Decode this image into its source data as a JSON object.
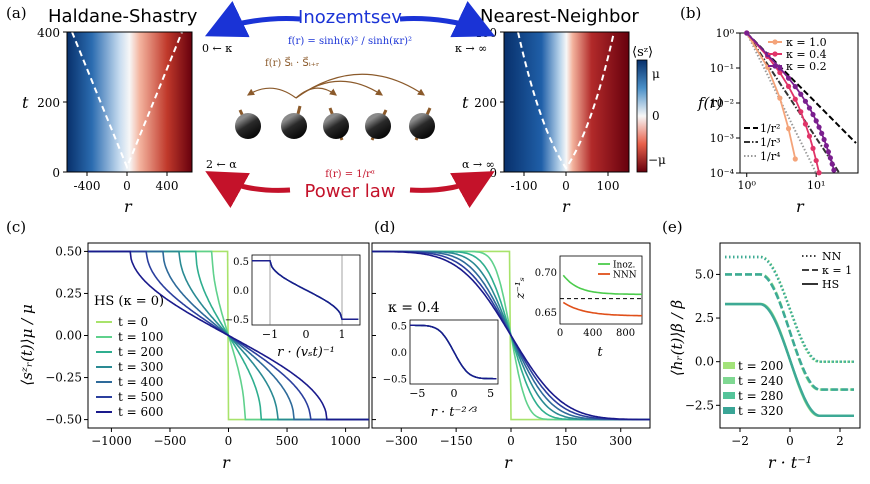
{
  "figure": {
    "panel_labels": [
      "(a)",
      "(b)",
      "(c)",
      "(d)",
      "(e)"
    ],
    "colors": {
      "blue_label": "#1a33d6",
      "red_label": "#c4122a",
      "brown_label": "#8b5a2b",
      "map_low": "#08306b",
      "map_high": "#67000d",
      "axis": "#000000"
    }
  },
  "panel_a": {
    "left_title": "Haldane-Shastry",
    "right_title": "Nearest-Neighbor",
    "top_label": "Inozemtsev",
    "bottom_label": "Power law",
    "kappa_left": "0 ← κ",
    "kappa_right": "κ → ∞",
    "alpha_left": "2 ← α",
    "alpha_right": "α → ∞",
    "f_inozemtsev": "f(r) = sinh(κ)² / sinh(κr)²",
    "f_coupling": "f(r) S⃗ᵢ · S⃗ᵢ₊ᵣ",
    "f_powerlaw": "f(r) = 1/rᵅ",
    "colorbar_label": "⟨sᶻ⟩",
    "colorbar_ticks": [
      "μ",
      "0",
      "−μ"
    ],
    "left_map": {
      "ylabel": "t",
      "xlabel": "r",
      "yticks": [
        "0",
        "200",
        "400"
      ],
      "xticks": [
        "-400",
        "0",
        "400"
      ]
    },
    "right_map": {
      "ylabel": "t",
      "xlabel": "r",
      "yticks": [
        "0",
        "200",
        "400"
      ],
      "xticks": [
        "-100",
        "0",
        "100"
      ]
    }
  },
  "panel_b": {
    "chart_data": {
      "type": "line",
      "xlabel": "r",
      "ylabel": "f(r)",
      "xscale": "log",
      "yscale": "log",
      "xlim": [
        0.8,
        40
      ],
      "ylim": [
        0.0001,
        1
      ],
      "xticks": [
        "10⁰",
        "10¹"
      ],
      "yticks": [
        "10⁰",
        "10⁻¹",
        "10⁻²",
        "10⁻³",
        "10⁻⁴"
      ],
      "series": [
        {
          "name": "κ = 1.0",
          "color": "#f4a47a",
          "kappa": 1.0
        },
        {
          "name": "κ = 0.4",
          "color": "#e03468",
          "kappa": 0.4
        },
        {
          "name": "κ = 0.2",
          "color": "#7a1f8e",
          "kappa": 0.2
        }
      ],
      "reference_lines": [
        {
          "name": "1/r²",
          "power": 2,
          "style": "dashed"
        },
        {
          "name": "1/r³",
          "power": 3,
          "style": "dashdot"
        },
        {
          "name": "1/r⁴",
          "power": 4,
          "style": "dotted"
        }
      ]
    }
  },
  "panel_c": {
    "chart_data": {
      "type": "line",
      "xlabel": "r",
      "ylabel": "⟨sᶻᵣ(t)⟩μ / μ",
      "xlim": [
        -1200,
        1200
      ],
      "ylim": [
        -0.55,
        0.55
      ],
      "xticks": [
        "−1000",
        "−500",
        "0",
        "500",
        "1000"
      ],
      "yticks": [
        "0.50",
        "0.25",
        "0.00",
        "−0.25",
        "−0.50"
      ],
      "legend_title": "HS (κ = 0)",
      "series": [
        {
          "name": "t = 0",
          "t": 0,
          "color": "#a8e36b"
        },
        {
          "name": "t = 100",
          "t": 100,
          "color": "#5fd18c"
        },
        {
          "name": "t = 200",
          "t": 200,
          "color": "#2fae8f"
        },
        {
          "name": "t = 300",
          "t": 300,
          "color": "#2a8a93"
        },
        {
          "name": "t = 400",
          "t": 400,
          "color": "#2e6a9a"
        },
        {
          "name": "t = 500",
          "t": 500,
          "color": "#2b3f9e"
        },
        {
          "name": "t = 600",
          "t": 600,
          "color": "#1a1a8c"
        }
      ],
      "inset": {
        "xlabel": "r · (vₛt)⁻¹",
        "xticks": [
          "−1",
          "0",
          "1"
        ],
        "yticks": [
          "0.5",
          "0.0",
          "−0.5"
        ]
      }
    }
  },
  "panel_d": {
    "chart_data": {
      "type": "line",
      "xlabel": "r",
      "xlim": [
        -380,
        380
      ],
      "ylim": [
        -0.55,
        0.55
      ],
      "xticks": [
        "−300",
        "−150",
        "0",
        "150",
        "300"
      ],
      "annotation": "κ = 0.4",
      "inset_left": {
        "xlabel": "r · t⁻²ᐟ³",
        "xticks": [
          "−5",
          "0",
          "5"
        ],
        "yticks": [
          "0.5",
          "0.0",
          "−0.5"
        ]
      },
      "inset_right": {
        "xlabel": "t",
        "ylabel": "z⁻¹ₛ",
        "xticks": [
          "0",
          "400",
          "800"
        ],
        "yticks": [
          "0.70",
          "0.65"
        ],
        "series": [
          {
            "name": "Inoz.",
            "color": "#4ccc4c"
          },
          {
            "name": "NNN",
            "color": "#e0501a"
          }
        ]
      }
    }
  },
  "panel_e": {
    "chart_data": {
      "type": "line",
      "xlabel": "r · t⁻¹",
      "ylabel": "⟨hᵣ(t)⟩β / β",
      "xlim": [
        -2.8,
        2.8
      ],
      "ylim": [
        -3.8,
        6.8
      ],
      "xticks": [
        "−2",
        "0",
        "2"
      ],
      "yticks": [
        "5.0",
        "2.5",
        "0.0",
        "−2.5"
      ],
      "style_legend": [
        "NN",
        "κ = 1",
        "HS"
      ],
      "series": [
        {
          "name": "t = 200",
          "color": "#a3e37a"
        },
        {
          "name": "t = 240",
          "color": "#7fd892"
        },
        {
          "name": "t = 280",
          "color": "#55c49a"
        },
        {
          "name": "t = 320",
          "color": "#3aa596"
        }
      ],
      "plateaus": [
        {
          "name": "NN",
          "left": 6.0,
          "right": 0.0
        },
        {
          "name": "κ = 1",
          "left": 5.0,
          "right": -1.6
        },
        {
          "name": "HS",
          "left": 3.3,
          "right": -3.1
        }
      ]
    }
  }
}
